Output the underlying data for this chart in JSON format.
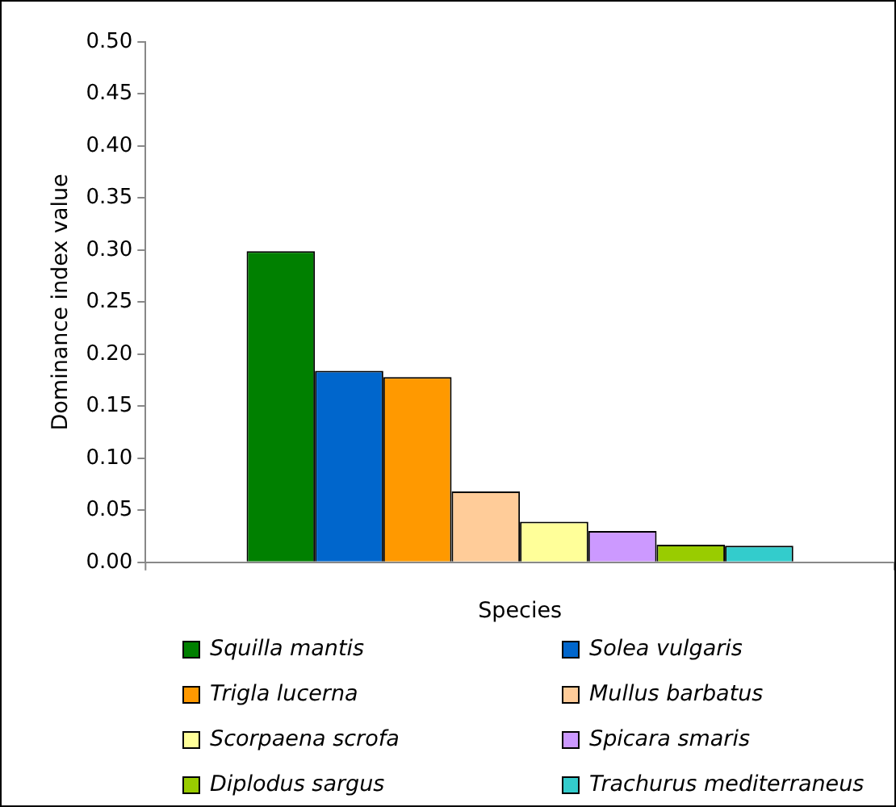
{
  "chart_data": {
    "type": "bar",
    "xlabel": "Species",
    "ylabel": "Dominance index value",
    "categories": [
      null
    ],
    "series": [
      {
        "name": "Squilla mantis",
        "color": "#008000",
        "values": [
          0.299
        ]
      },
      {
        "name": "Solea vulgaris",
        "color": "#0066cc",
        "values": [
          0.184
        ]
      },
      {
        "name": "Trigla lucerna",
        "color": "#ff9900",
        "values": [
          0.178
        ]
      },
      {
        "name": "Mullus barbatus",
        "color": "#ffcc99",
        "values": [
          0.068
        ]
      },
      {
        "name": "Scorpaena scrofa",
        "color": "#ffff99",
        "values": [
          0.039
        ]
      },
      {
        "name": "Spicara smaris",
        "color": "#cc99ff",
        "values": [
          0.03
        ]
      },
      {
        "name": "Diplodus sargus",
        "color": "#99cc00",
        "values": [
          0.017
        ]
      },
      {
        "name": "Trachurus mediterraneus",
        "color": "#33cccc",
        "values": [
          0.016
        ]
      }
    ],
    "ylim": [
      0,
      0.5
    ],
    "yticks": [
      {
        "value": 0,
        "label": "0.00"
      },
      0.05,
      {
        "value": 0.1,
        "label": "0.10"
      },
      0.15,
      {
        "value": 0.2,
        "label": "0.20"
      },
      0.25,
      {
        "value": 0.3,
        "label": "0.30"
      },
      0.35,
      {
        "value": 0.4,
        "label": "0.40"
      },
      0.45,
      {
        "value": 0.5,
        "label": "0.50"
      }
    ],
    "grid": false,
    "legend": "bottom"
  }
}
